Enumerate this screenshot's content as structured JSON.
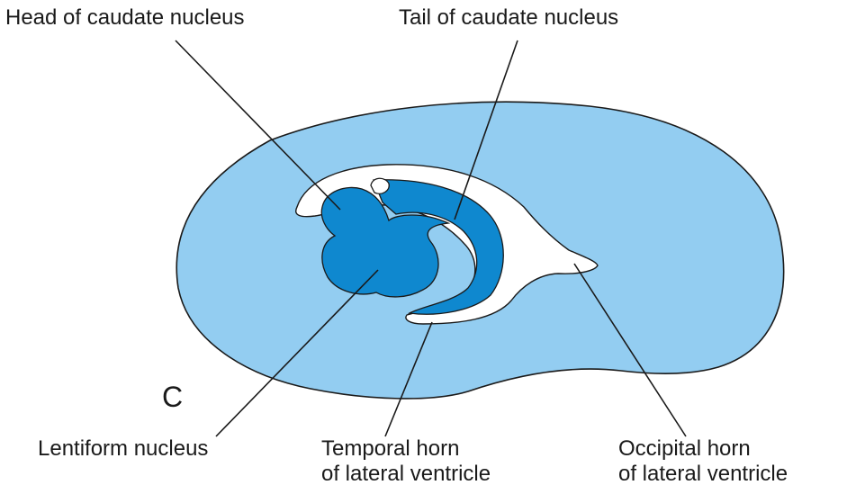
{
  "figure": {
    "panel_letter": "C",
    "colors": {
      "hemisphere": "#93cdf1",
      "caudate": "#0f88cf",
      "ventricle": "#ffffff",
      "outline": "#1a1a1a"
    }
  },
  "labels": {
    "head_of_caudate": "Head of caudate nucleus",
    "tail_of_caudate": "Tail of caudate nucleus",
    "lentiform_nucleus": "Lentiform nucleus",
    "temporal_horn_line1": "Temporal horn",
    "temporal_horn_line2": "of lateral ventricle",
    "occipital_horn_line1": "Occipital horn",
    "occipital_horn_line2": "of lateral ventricle"
  }
}
